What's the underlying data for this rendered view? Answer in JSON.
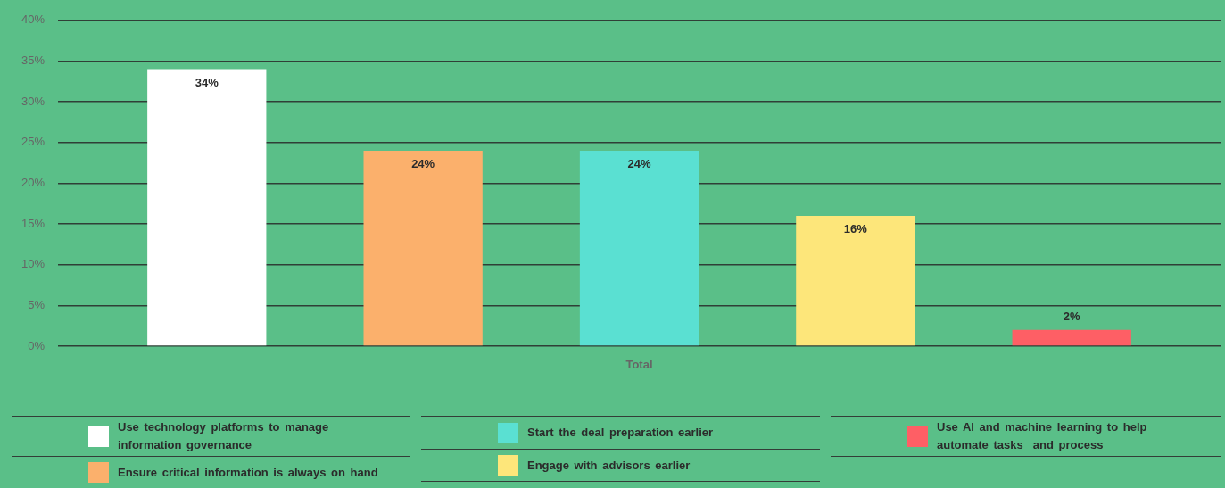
{
  "chart_data": {
    "type": "bar",
    "categories": [
      "Total"
    ],
    "series": [
      {
        "name": "Use technology platforms to manage information governance",
        "color": "#ffffff",
        "values": [
          34
        ],
        "value_labels": [
          "34%"
        ]
      },
      {
        "name": "Ensure critical information is always on hand",
        "color": "#fbb06c",
        "values": [
          24
        ],
        "value_labels": [
          "24%"
        ]
      },
      {
        "name": "Start the deal preparation earlier",
        "color": "#5ae0d2",
        "values": [
          24
        ],
        "value_labels": [
          "24%"
        ]
      },
      {
        "name": "Engage with advisors earlier",
        "color": "#fde67a",
        "values": [
          16
        ],
        "value_labels": [
          "16%"
        ]
      },
      {
        "name": "Use AI and machine learning to help automate tasks  and process",
        "color": "#fe5f65",
        "values": [
          2
        ],
        "value_labels": [
          "2%"
        ]
      }
    ],
    "ylim": [
      0,
      40
    ],
    "yticks": [
      {
        "value": 0,
        "label": "0%"
      },
      {
        "value": 5,
        "label": "5%"
      },
      {
        "value": 10,
        "label": "10%"
      },
      {
        "value": 15,
        "label": "15%"
      },
      {
        "value": 20,
        "label": "20%"
      },
      {
        "value": 25,
        "label": "25%"
      },
      {
        "value": 30,
        "label": "30%"
      },
      {
        "value": 35,
        "label": "35%"
      },
      {
        "value": 40,
        "label": "40%"
      }
    ],
    "grid": "y",
    "legend": "bottom"
  }
}
